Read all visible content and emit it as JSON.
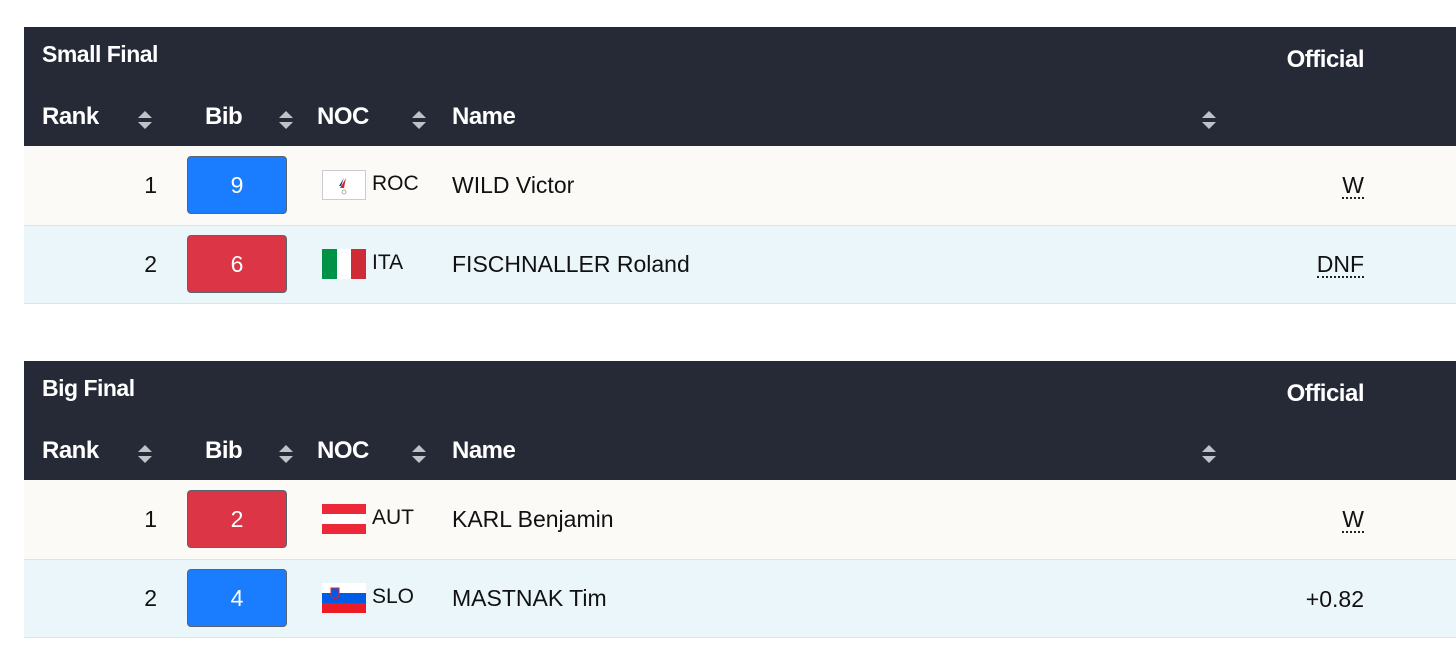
{
  "tables": [
    {
      "title": "Small Final",
      "status": "Official",
      "columns": [
        "Rank",
        "Bib",
        "NOC",
        "Name"
      ],
      "rows": [
        {
          "rank": 1,
          "bib": 9,
          "bib_color": "#1a7cff",
          "noc": "ROC",
          "name": "WILD Victor",
          "result": "W"
        },
        {
          "rank": 2,
          "bib": 6,
          "bib_color": "#dc3545",
          "noc": "ITA",
          "name": "FISCHNALLER Roland",
          "result": "DNF"
        }
      ]
    },
    {
      "title": "Big Final",
      "status": "Official",
      "columns": [
        "Rank",
        "Bib",
        "NOC",
        "Name"
      ],
      "rows": [
        {
          "rank": 1,
          "bib": 2,
          "bib_color": "#dc3545",
          "noc": "AUT",
          "name": "KARL Benjamin",
          "result": "W"
        },
        {
          "rank": 2,
          "bib": 4,
          "bib_color": "#1a7cff",
          "noc": "SLO",
          "name": "MASTNAK Tim",
          "result": "+0.82"
        }
      ]
    }
  ]
}
